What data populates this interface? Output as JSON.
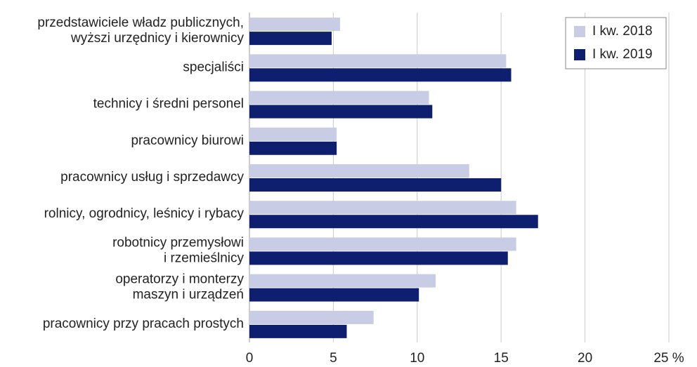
{
  "chart_data": {
    "type": "bar",
    "orientation": "horizontal",
    "categories": [
      [
        "przedstawiciele władz publicznych,",
        "wyższi urzędnicy i kierownicy"
      ],
      [
        "specjaliści"
      ],
      [
        "technicy i średni personel"
      ],
      [
        "pracownicy biurowi"
      ],
      [
        "pracownicy usług i sprzedawcy"
      ],
      [
        "rolnicy, ogrodnicy, leśnicy i rybacy"
      ],
      [
        "robotnicy przemysłowi",
        "i rzemieślnicy"
      ],
      [
        "operatorzy i monterzy",
        "maszyn i urządzeń"
      ],
      [
        "pracownicy przy pracach prostych"
      ]
    ],
    "series": [
      {
        "name": "I kw. 2018",
        "color": "#c8cce4",
        "values": [
          5.4,
          15.3,
          10.7,
          5.2,
          13.1,
          15.9,
          15.9,
          11.1,
          7.4
        ]
      },
      {
        "name": "I kw. 2019",
        "color": "#0d1f6e",
        "values": [
          4.9,
          15.6,
          10.9,
          5.2,
          15.0,
          17.2,
          15.4,
          10.1,
          5.8
        ]
      }
    ],
    "xlim": [
      0,
      25
    ],
    "xticks": [
      0,
      5,
      10,
      15,
      20,
      {
        "value": 25,
        "label": "25 %"
      }
    ],
    "grid": true,
    "legend": "top-right"
  }
}
